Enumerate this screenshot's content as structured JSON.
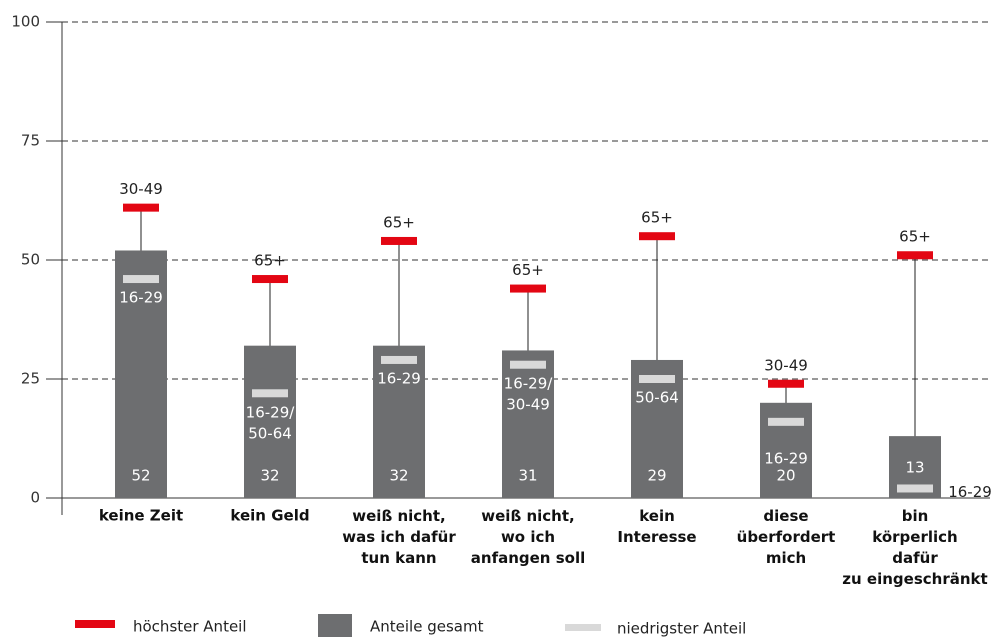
{
  "chart_data": {
    "type": "bar",
    "categories": [
      "keine Zeit",
      "kein Geld",
      "weiß nicht,\nwas ich dafür\ntun kann",
      "weiß nicht,\nwo ich\nanfangen soll",
      "kein\nInteresse",
      "diese\nüberfordert\nmich",
      "bin\nkörperlich\ndafür\nzu eingeschränkt"
    ],
    "series": [
      {
        "name": "Anteile gesamt",
        "color": "#6d6e70",
        "values": [
          52,
          32,
          32,
          31,
          29,
          20,
          13
        ]
      },
      {
        "name": "höchster Anteil",
        "color": "#e30613",
        "values": [
          61,
          46,
          54,
          44,
          55,
          24,
          51
        ],
        "labels": [
          "30-49",
          "65+",
          "65+",
          "65+",
          "65+",
          "30-49",
          "65+"
        ]
      },
      {
        "name": "niedrigster Anteil",
        "color": "#d9d9d9",
        "values": [
          46,
          22,
          29,
          28,
          25,
          16,
          2
        ],
        "labels": [
          "16-29",
          "16-29/\n50-64",
          "16-29",
          "16-29/\n30-49",
          "50-64",
          "16-29",
          "16-29"
        ]
      }
    ],
    "ylim": [
      0,
      100
    ],
    "yticks": [
      0,
      25,
      50,
      75,
      100
    ],
    "grid": true
  }
}
